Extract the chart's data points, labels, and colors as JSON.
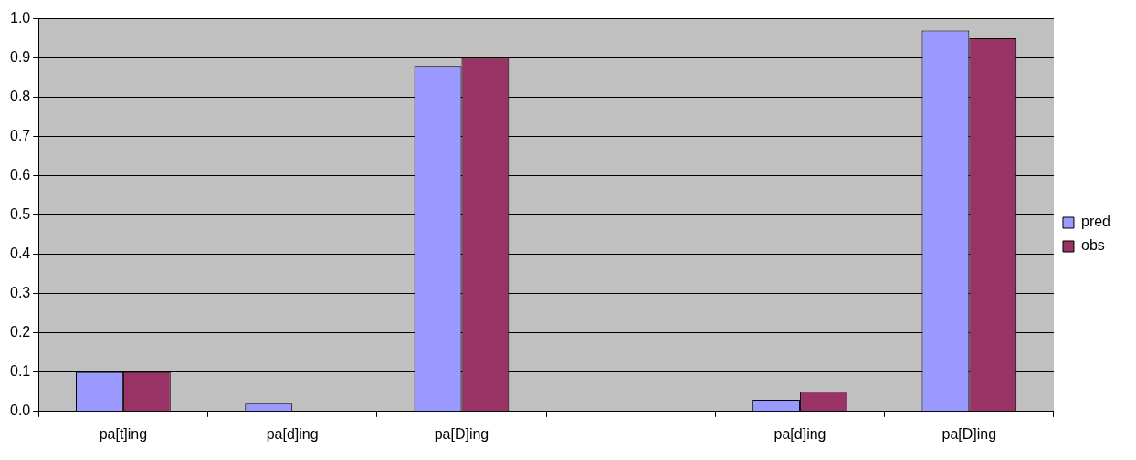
{
  "chart_data": {
    "type": "bar",
    "categories": [
      "pa[t]ing",
      "pa[d]ing",
      "pa[D]ing",
      null,
      "pa[d]ing",
      "pa[D]ing"
    ],
    "series": [
      {
        "name": "pred",
        "color": "#9999ff",
        "values": [
          0.1,
          0.02,
          0.88,
          null,
          0.03,
          0.97
        ]
      },
      {
        "name": "obs",
        "color": "#993366",
        "values": [
          0.1,
          null,
          0.9,
          null,
          0.05,
          0.95
        ]
      }
    ],
    "ylim": [
      0,
      1
    ],
    "yticks": [
      {
        "value": 0,
        "label": "0.0"
      },
      {
        "value": 0.1,
        "label": "0.1"
      },
      {
        "value": 0.2,
        "label": "0.2"
      },
      {
        "value": 0.3,
        "label": "0.3"
      },
      {
        "value": 0.4,
        "label": "0.4"
      },
      {
        "value": 0.5,
        "label": "0.5"
      },
      {
        "value": 0.6,
        "label": "0.6"
      },
      {
        "value": 0.7,
        "label": "0.7"
      },
      {
        "value": 0.8,
        "label": "0.8"
      },
      {
        "value": 0.9,
        "label": "0.9"
      },
      {
        "value": 1,
        "label": "1.0"
      }
    ],
    "grid": "y",
    "legend": "right"
  }
}
